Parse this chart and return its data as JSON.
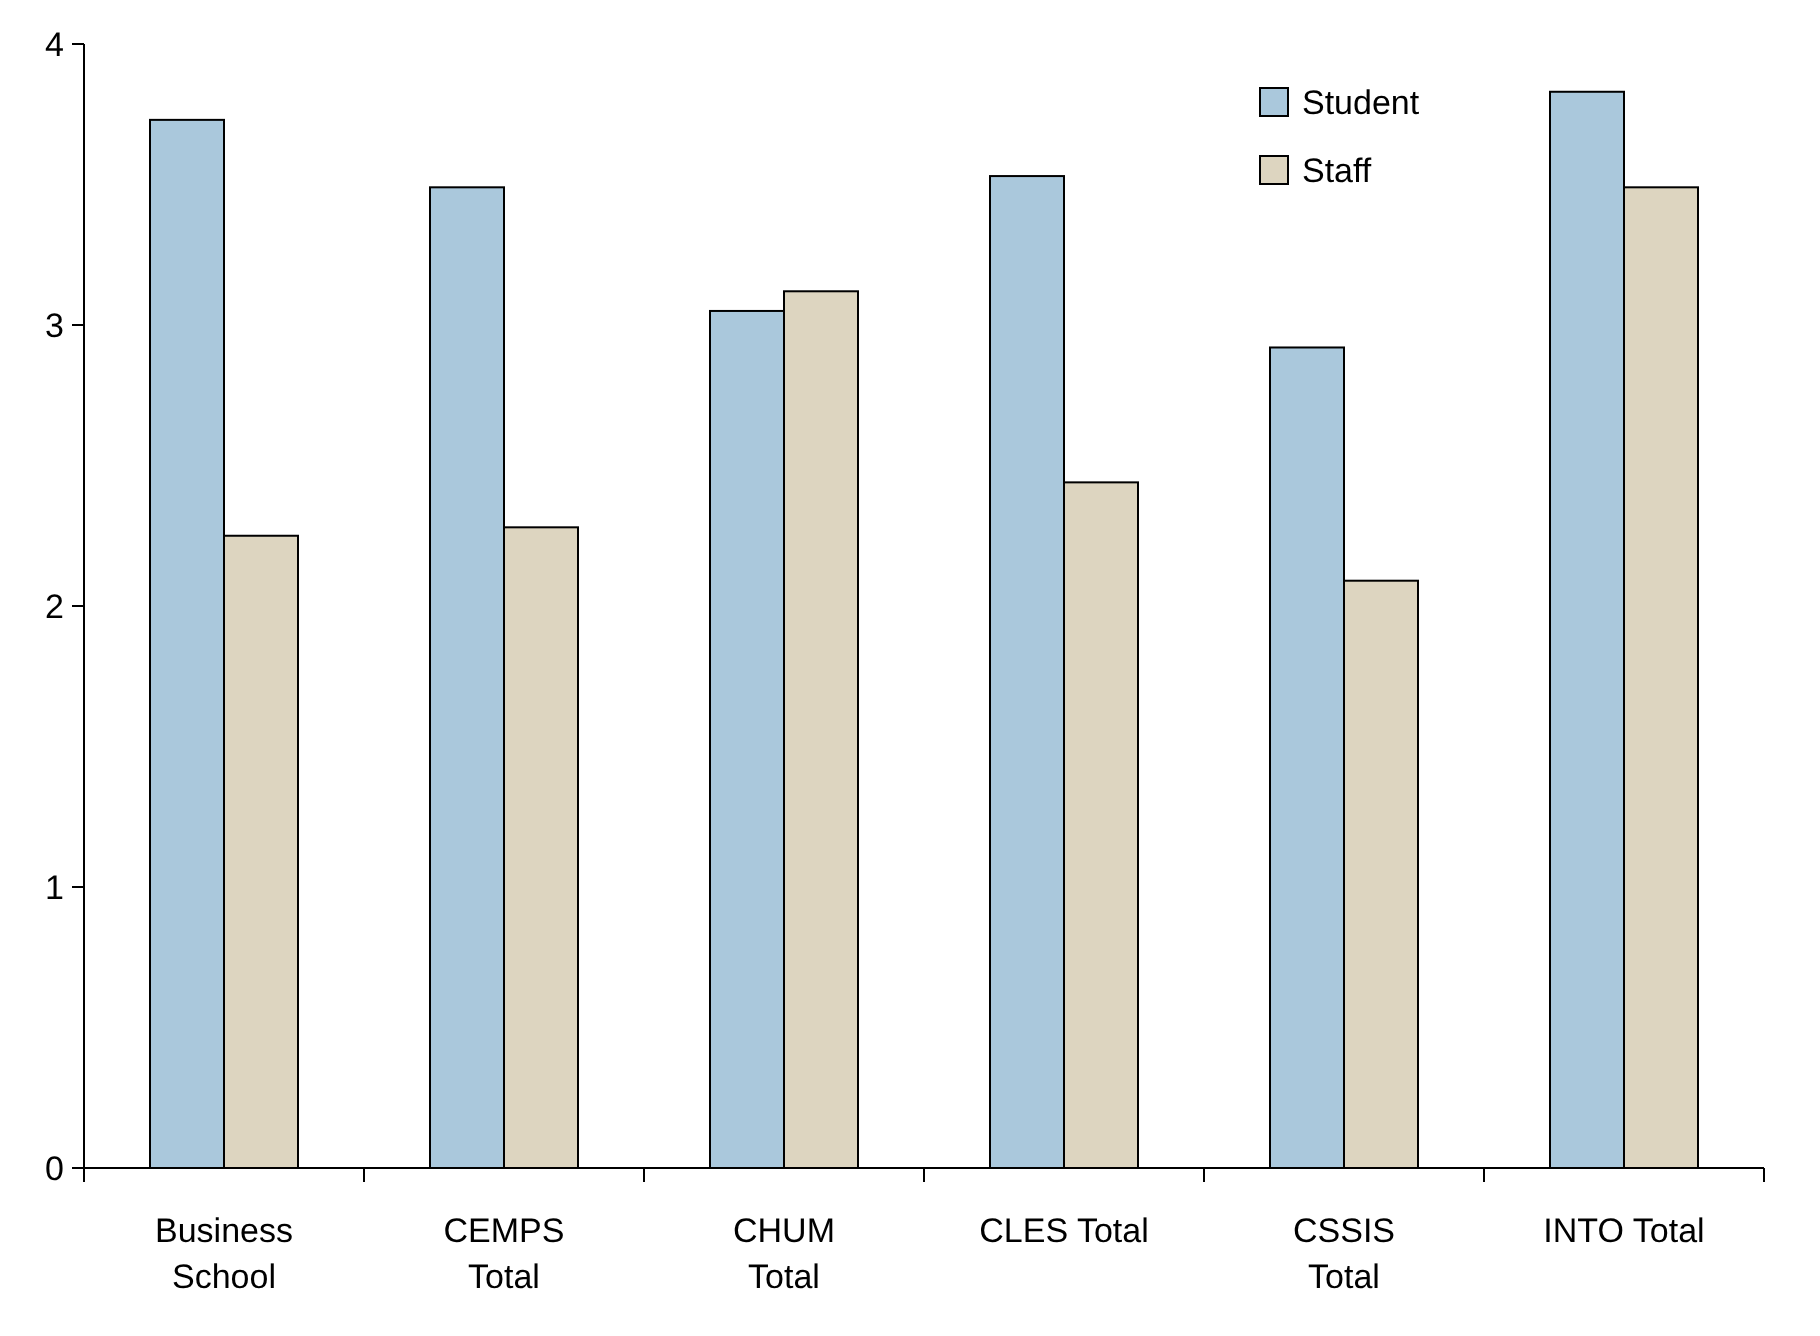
{
  "chart_data": {
    "type": "bar",
    "categories": [
      "Business School",
      "CEMPS Total",
      "CHUM Total",
      "CLES Total",
      "CSSIS Total",
      "INTO Total"
    ],
    "series": [
      {
        "name": "Student",
        "color": "#aac8dc",
        "values": [
          3.73,
          3.49,
          3.05,
          3.53,
          2.92,
          3.83
        ]
      },
      {
        "name": "Staff",
        "color": "#ddd5c0",
        "values": [
          2.25,
          2.28,
          3.12,
          2.44,
          2.09,
          3.49
        ]
      }
    ],
    "ylim": [
      0,
      4
    ],
    "yticks": [
      0,
      1,
      2,
      3,
      4
    ],
    "grid": false,
    "legend": "top right"
  }
}
